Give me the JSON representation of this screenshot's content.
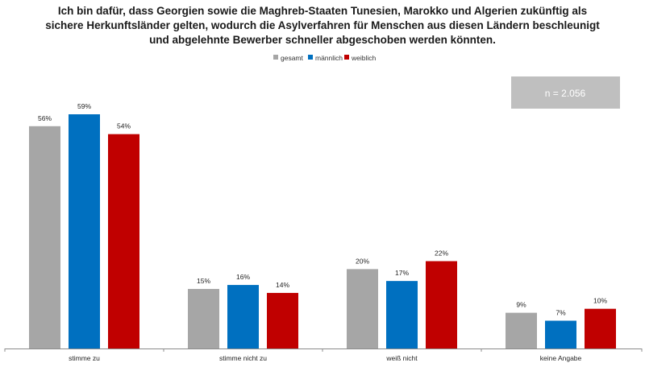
{
  "chart_data": {
    "type": "bar",
    "title_lines": [
      "Ich bin dafür, dass Georgien sowie die Maghreb-Staaten Tunesien, Marokko und Algerien zukünftig als",
      "sichere Herkunftsländer gelten, wodurch die Asylverfahren für Menschen aus diesen Ländern beschleunigt",
      "und abgelehnte Bewerber schneller abgeschoben werden könnten."
    ],
    "categories": [
      "stimme zu",
      "stimme nicht zu",
      "weiß nicht",
      "keine Angabe"
    ],
    "series": [
      {
        "name": "gesamt",
        "color": "#A6A6A6",
        "values": [
          56,
          15,
          20,
          9
        ],
        "labels": [
          "56%",
          "15%",
          "20%",
          "9%"
        ]
      },
      {
        "name": "männlich",
        "color": "#0070C0",
        "values": [
          59,
          16,
          17,
          7
        ],
        "labels": [
          "59%",
          "16%",
          "17%",
          "7%"
        ]
      },
      {
        "name": "weiblich",
        "color": "#C00000",
        "values": [
          54,
          14,
          22,
          10
        ],
        "labels": [
          "54%",
          "14%",
          "22%",
          "10%"
        ]
      }
    ],
    "ylim": [
      0,
      62
    ],
    "grid": false,
    "legend_position": "top-center",
    "annotation": {
      "text": "n = 2.056",
      "background": "#BFBFBF"
    }
  }
}
